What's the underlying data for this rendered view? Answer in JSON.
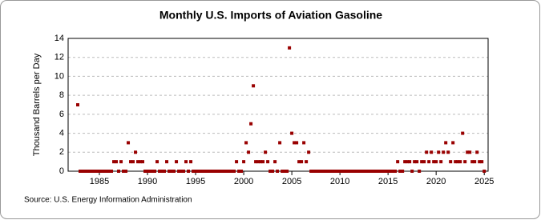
{
  "chart_data": {
    "type": "scatter",
    "title": "Monthly U.S. Imports of Aviation Gasoline",
    "y_label": "Thousand Barrels per Day",
    "source": "Source: U.S. Energy Information Administration",
    "color": "#990000",
    "grid": true,
    "xlim": [
      1981.75,
      2025.4
    ],
    "xticks": [
      1985,
      1990,
      1995,
      2000,
      2005,
      2010,
      2015,
      2020,
      2025
    ],
    "ylim": [
      0,
      14
    ],
    "yticks": [
      0,
      2,
      4,
      6,
      8,
      10,
      12,
      14
    ],
    "x": [
      1982.75,
      1983,
      1983.25,
      1983.5,
      1983.75,
      1984,
      1984.25,
      1984.5,
      1984.75,
      1985,
      1985.25,
      1985.5,
      1985.75,
      1986,
      1986.25,
      1986.5,
      1986.75,
      1987,
      1987.25,
      1987.5,
      1987.75,
      1988,
      1988.25,
      1988.5,
      1988.75,
      1989,
      1989.25,
      1989.5,
      1989.75,
      1990,
      1990.25,
      1990.5,
      1990.75,
      1991,
      1991.25,
      1991.5,
      1991.75,
      1992,
      1992.25,
      1992.5,
      1992.75,
      1993,
      1993.25,
      1993.5,
      1993.75,
      1994,
      1994.25,
      1994.5,
      1994.75,
      1995,
      1995.25,
      1995.5,
      1995.75,
      1996,
      1996.25,
      1996.5,
      1996.75,
      1997,
      1997.25,
      1997.5,
      1997.75,
      1998,
      1998.25,
      1998.5,
      1998.75,
      1999,
      1999.25,
      1999.5,
      1999.75,
      2000,
      2000.25,
      2000.5,
      2000.75,
      2001,
      2001.25,
      2001.5,
      2001.75,
      2002,
      2002.25,
      2002.5,
      2002.75,
      2003,
      2003.25,
      2003.5,
      2003.75,
      2004,
      2004.25,
      2004.5,
      2004.75,
      2005,
      2005.25,
      2005.5,
      2005.75,
      2006,
      2006.25,
      2006.5,
      2006.75,
      2007,
      2007.25,
      2007.5,
      2007.75,
      2008,
      2008.25,
      2008.5,
      2008.75,
      2009,
      2009.25,
      2009.5,
      2009.75,
      2010,
      2010.25,
      2010.5,
      2010.75,
      2011,
      2011.25,
      2011.5,
      2011.75,
      2012,
      2012.25,
      2012.5,
      2012.75,
      2013,
      2013.25,
      2013.5,
      2013.75,
      2014,
      2014.25,
      2014.5,
      2014.75,
      2015,
      2015.25,
      2015.5,
      2015.75,
      2016,
      2016.25,
      2016.5,
      2016.75,
      2017,
      2017.25,
      2017.5,
      2017.75,
      2018,
      2018.25,
      2018.5,
      2018.75,
      2019,
      2019.25,
      2019.5,
      2019.75,
      2020,
      2020.25,
      2020.5,
      2020.75,
      2021,
      2021.25,
      2021.5,
      2021.75,
      2022,
      2022.25,
      2022.5,
      2022.75,
      2023,
      2023.25,
      2023.5,
      2023.75,
      2024,
      2024.25,
      2024.5,
      2024.75,
      2025
    ],
    "values": [
      7,
      0,
      0,
      0,
      0,
      0,
      0,
      0,
      0,
      0,
      0,
      0,
      0,
      0,
      0,
      1,
      1,
      0,
      1,
      0,
      0,
      3,
      1,
      1,
      2,
      1,
      1,
      1,
      0,
      0,
      0,
      0,
      0,
      1,
      0,
      0,
      0,
      1,
      0,
      0,
      0,
      1,
      0,
      0,
      0,
      1,
      0,
      1,
      0,
      0,
      0,
      0,
      0,
      0,
      0,
      0,
      0,
      0,
      0,
      0,
      0,
      0,
      0,
      0,
      0,
      0,
      1,
      0,
      0,
      1,
      3,
      2,
      5,
      9,
      1,
      1,
      1,
      1,
      2,
      1,
      0,
      0,
      1,
      0,
      3,
      0,
      0,
      0,
      13,
      4,
      3,
      3,
      1,
      1,
      3,
      1,
      2,
      0,
      0,
      0,
      0,
      0,
      0,
      0,
      0,
      0,
      0,
      0,
      0,
      0,
      0,
      0,
      0,
      0,
      0,
      0,
      0,
      0,
      0,
      0,
      0,
      0,
      0,
      0,
      0,
      0,
      0,
      0,
      0,
      0,
      0,
      0,
      0,
      1,
      0,
      0,
      1,
      1,
      1,
      0,
      1,
      1,
      0,
      1,
      1,
      2,
      1,
      2,
      1,
      1,
      2,
      1,
      2,
      3,
      2,
      1,
      3,
      1,
      1,
      1,
      4,
      1,
      2,
      2,
      1,
      1,
      2,
      1,
      1,
      0
    ]
  }
}
